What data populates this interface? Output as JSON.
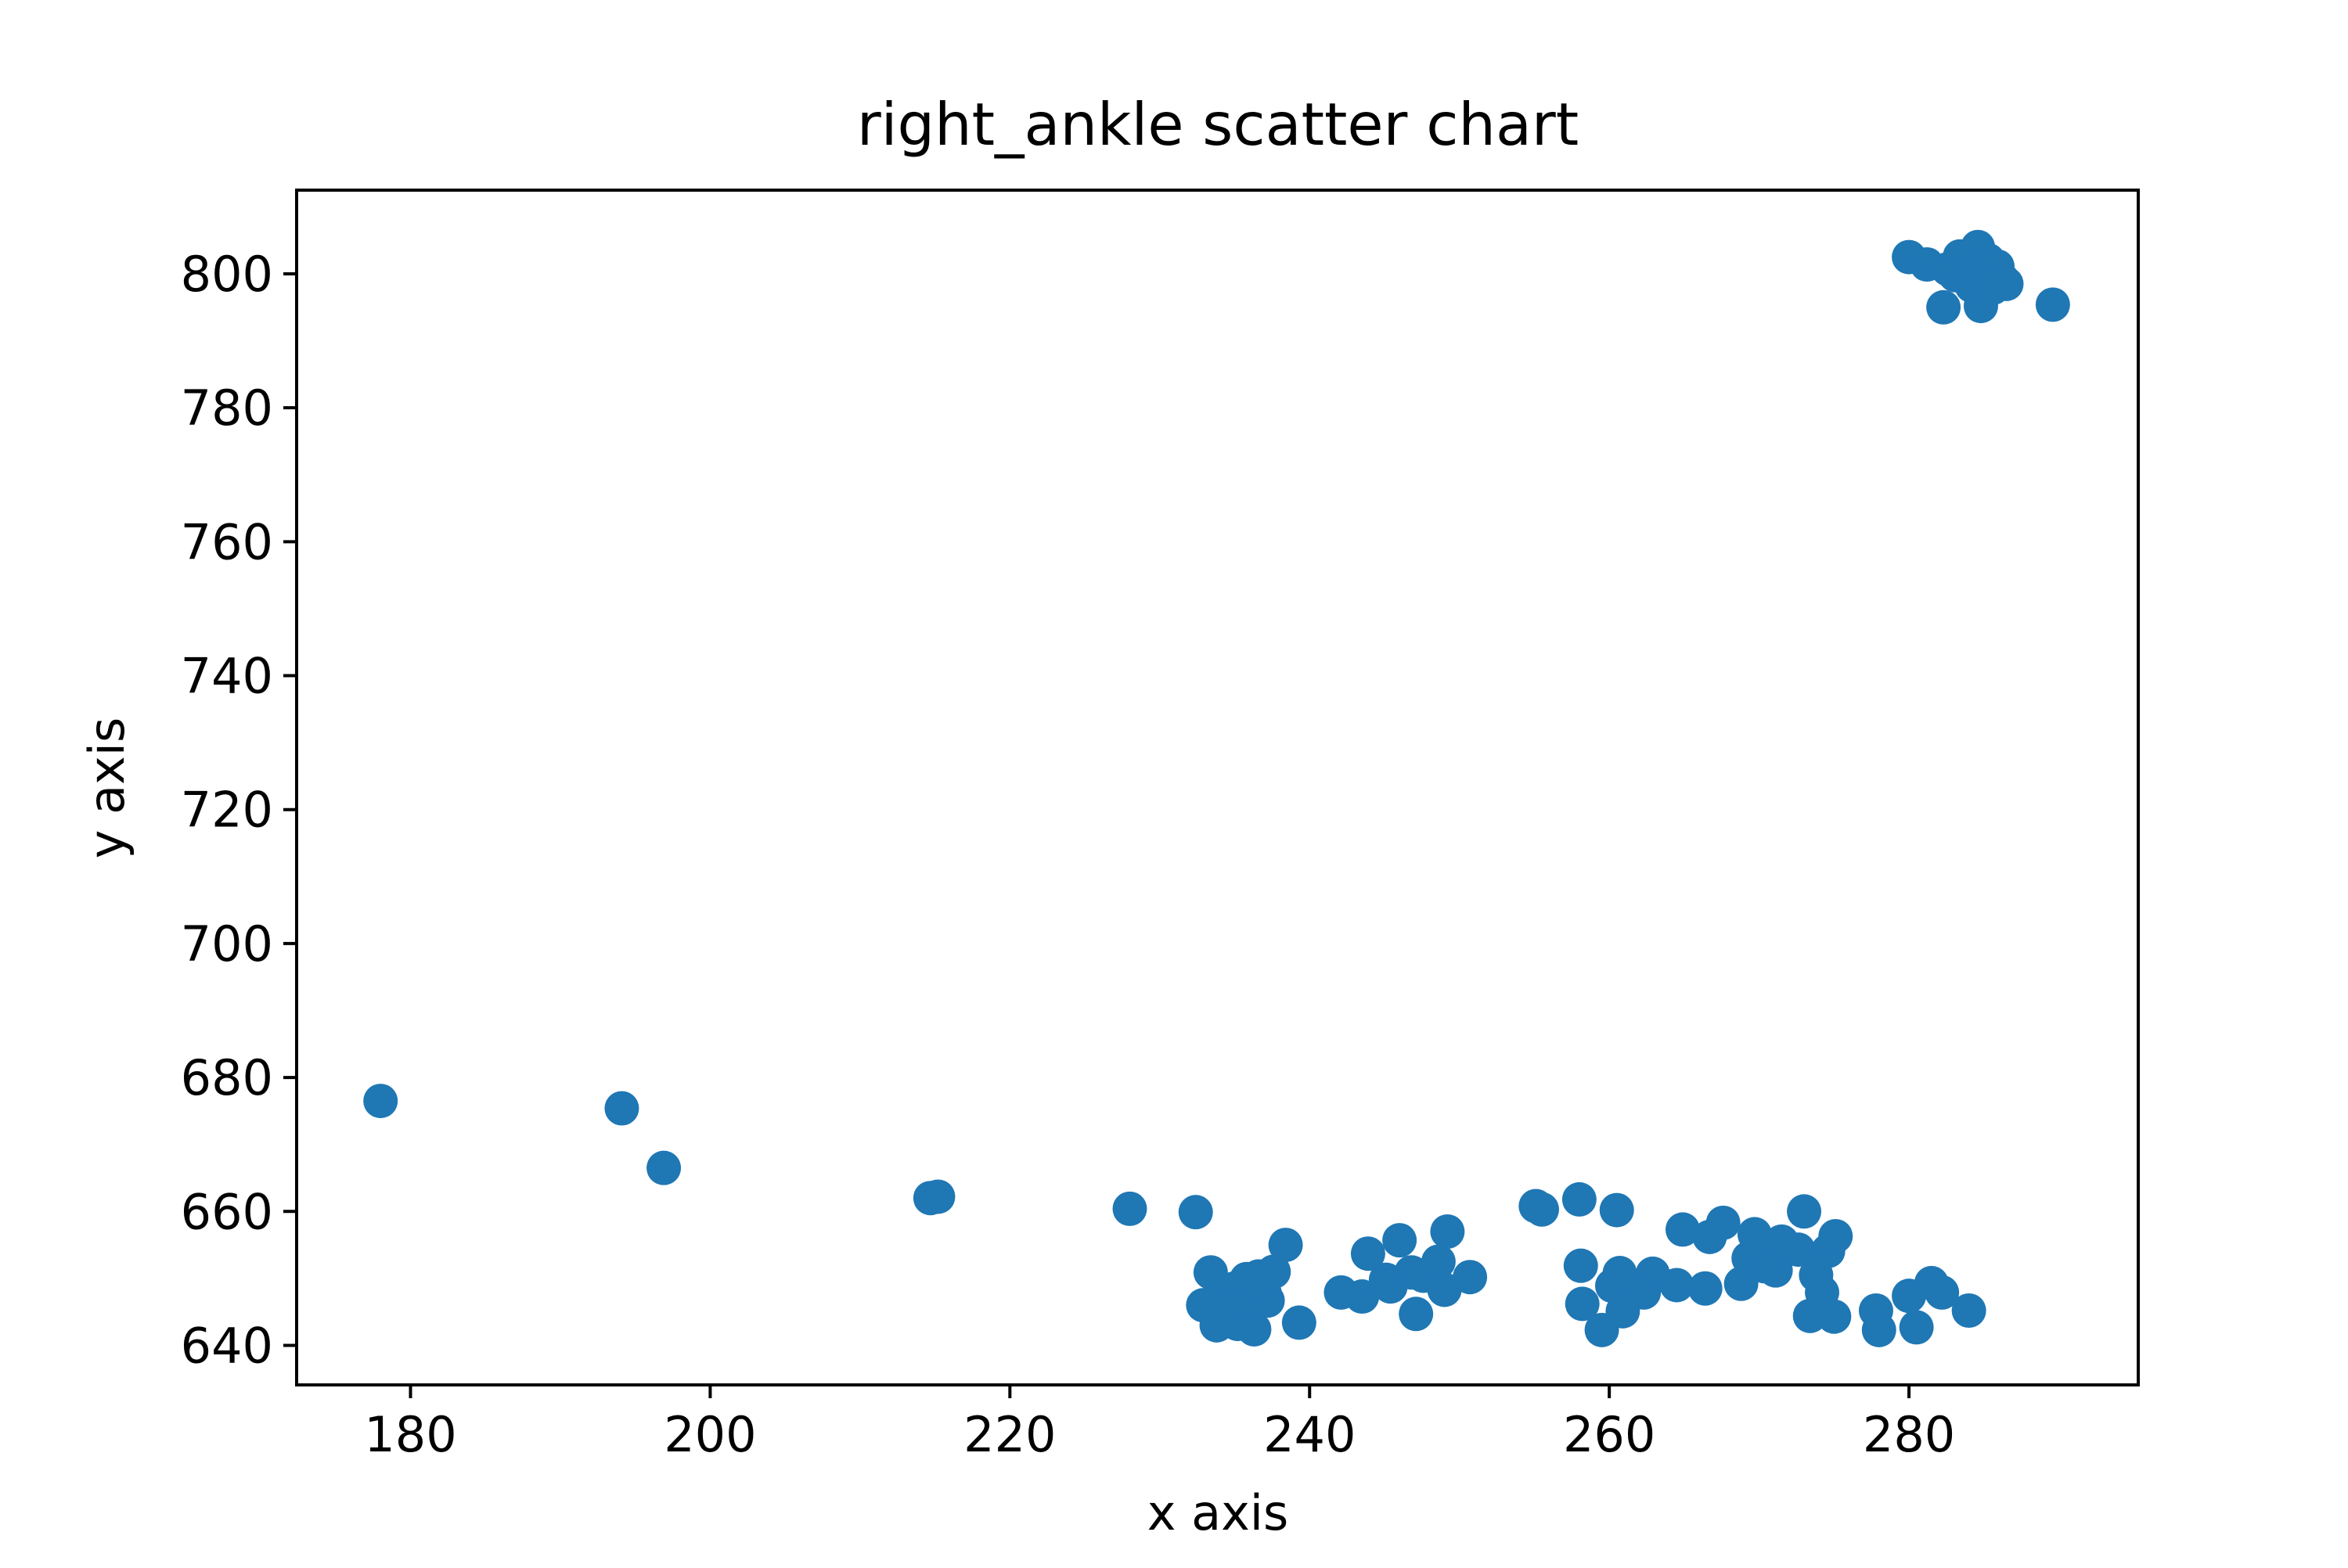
{
  "chart_data": {
    "type": "scatter",
    "title": "right_ankle scatter chart",
    "xlabel": "x axis",
    "ylabel": "y axis",
    "xlim": [
      172.4,
      295.3
    ],
    "ylim": [
      634.1,
      812.5
    ],
    "x_ticks": [
      180,
      200,
      220,
      240,
      260,
      280
    ],
    "y_ticks": [
      640,
      660,
      680,
      700,
      720,
      740,
      760,
      780,
      800
    ],
    "grid": false,
    "legend": "none",
    "marker_color": "#1f77b4",
    "series": [
      {
        "points": [
          [
            178.0,
            676.5
          ],
          [
            194.1,
            675.4
          ],
          [
            196.9,
            666.5
          ],
          [
            214.7,
            662.0
          ],
          [
            215.2,
            662.2
          ],
          [
            228.0,
            660.4
          ],
          [
            232.4,
            659.9
          ],
          [
            232.9,
            646.0
          ],
          [
            233.4,
            650.9
          ],
          [
            233.8,
            643.0
          ],
          [
            234.1,
            647.0
          ],
          [
            234.6,
            645.6
          ],
          [
            235.0,
            648.5
          ],
          [
            235.2,
            643.2
          ],
          [
            235.5,
            646.5
          ],
          [
            235.8,
            649.9
          ],
          [
            236.1,
            645.2
          ],
          [
            236.3,
            642.4
          ],
          [
            236.6,
            650.3
          ],
          [
            237.0,
            647.8
          ],
          [
            237.2,
            646.7
          ],
          [
            237.6,
            651.0
          ],
          [
            238.4,
            655.0
          ],
          [
            239.3,
            643.4
          ],
          [
            242.1,
            647.9
          ],
          [
            243.5,
            647.3
          ],
          [
            243.9,
            653.7
          ],
          [
            245.1,
            649.8
          ],
          [
            245.4,
            648.8
          ],
          [
            246.0,
            655.7
          ],
          [
            246.8,
            650.9
          ],
          [
            247.1,
            644.7
          ],
          [
            247.6,
            650.4
          ],
          [
            248.6,
            652.5
          ],
          [
            249.0,
            648.3
          ],
          [
            249.2,
            657.0
          ],
          [
            250.7,
            650.2
          ],
          [
            255.1,
            660.8
          ],
          [
            255.5,
            660.3
          ],
          [
            258.0,
            661.8
          ],
          [
            258.1,
            651.9
          ],
          [
            258.2,
            646.2
          ],
          [
            259.5,
            642.3
          ],
          [
            260.2,
            648.9
          ],
          [
            260.5,
            660.2
          ],
          [
            260.7,
            650.8
          ],
          [
            260.9,
            645.1
          ],
          [
            262.3,
            647.9
          ],
          [
            262.9,
            650.7
          ],
          [
            264.5,
            649.0
          ],
          [
            264.9,
            657.3
          ],
          [
            266.4,
            648.5
          ],
          [
            266.7,
            656.2
          ],
          [
            267.6,
            658.3
          ],
          [
            268.8,
            649.2
          ],
          [
            269.3,
            653.0
          ],
          [
            269.7,
            656.6
          ],
          [
            270.1,
            654.5
          ],
          [
            270.4,
            651.8
          ],
          [
            270.8,
            652.9
          ],
          [
            271.1,
            651.2
          ],
          [
            271.5,
            655.5
          ],
          [
            272.6,
            654.3
          ],
          [
            273.0,
            660.0
          ],
          [
            273.4,
            644.4
          ],
          [
            273.8,
            650.5
          ],
          [
            274.2,
            647.9
          ],
          [
            274.6,
            654.1
          ],
          [
            275.0,
            644.3
          ],
          [
            275.1,
            656.3
          ],
          [
            277.8,
            645.2
          ],
          [
            278.0,
            642.3
          ],
          [
            280.0,
            647.4
          ],
          [
            280.0,
            802.5
          ],
          [
            280.5,
            642.7
          ],
          [
            281.2,
            801.4
          ],
          [
            281.5,
            649.3
          ],
          [
            282.2,
            647.9
          ],
          [
            282.3,
            795.0
          ],
          [
            282.6,
            800.7
          ],
          [
            283.1,
            799.8
          ],
          [
            283.4,
            802.6
          ],
          [
            283.7,
            801.3
          ],
          [
            284.0,
            645.2
          ],
          [
            284.2,
            798.2
          ],
          [
            284.5,
            800.5
          ],
          [
            284.6,
            804.0
          ],
          [
            284.8,
            795.2
          ],
          [
            285.0,
            799.9
          ],
          [
            285.3,
            802.0
          ],
          [
            285.6,
            797.9
          ],
          [
            285.9,
            801.1
          ],
          [
            286.2,
            799.2
          ],
          [
            286.5,
            798.5
          ],
          [
            289.6,
            795.4
          ]
        ]
      }
    ]
  }
}
